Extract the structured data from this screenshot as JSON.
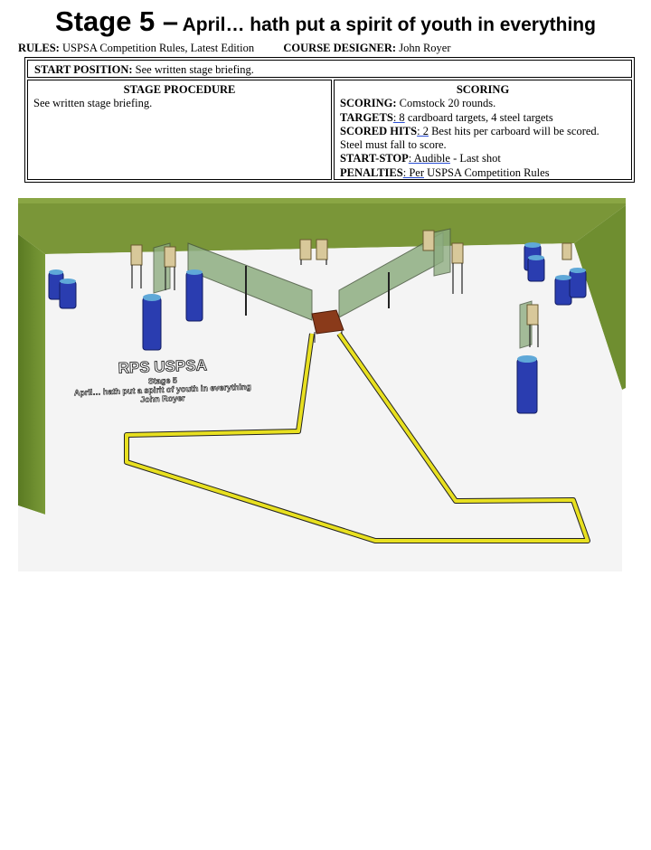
{
  "header": {
    "title_main": "Stage 5 –",
    "title_sub": "April… hath put a spirit of youth in everything"
  },
  "rules_line": {
    "rules_label": "RULES:",
    "rules_value": "USPSA Competition Rules, Latest Edition",
    "designer_label": "COURSE DESIGNER:",
    "designer_value": "John Royer"
  },
  "briefing": {
    "start_label": "START POSITION:",
    "start_value": "See written stage briefing.",
    "procedure_header": "STAGE PROCEDURE",
    "procedure_text": "See written stage briefing.",
    "scoring_header": "SCORING",
    "scoring_label": "SCORING:",
    "scoring_value": "Comstock 20 rounds.",
    "targets_label": "TARGETS",
    "targets_underlined": ": 8",
    "targets_value": "cardboard targets, 4 steel targets",
    "hits_label": "SCORED HITS",
    "hits_underlined": ": 2",
    "hits_value": "Best hits per carboard will be scored.",
    "hits_note": "Steel must fall to score.",
    "startstop_label": "START-STOP",
    "startstop_underlined": ": Audible",
    "startstop_value": "- Last shot",
    "penalties_label": "PENALTIES",
    "penalties_underlined": ": Per",
    "penalties_value": "USPSA Competition Rules"
  },
  "diagram": {
    "club_label": "RPS USPSA",
    "stage_label": "Stage 5",
    "stage_title": "April… hath put a spirit of youth in everything",
    "designer": "John Royer",
    "colors": {
      "berm": "#6b8a2e",
      "floor": "#f4f4f4",
      "fault_line": "#e8e020",
      "barrel": "#2a3db0",
      "barrel_band": "#5fa8d8",
      "wall": "#8fae82",
      "table": "#8a3a1a",
      "target": "#d8c89a"
    }
  }
}
